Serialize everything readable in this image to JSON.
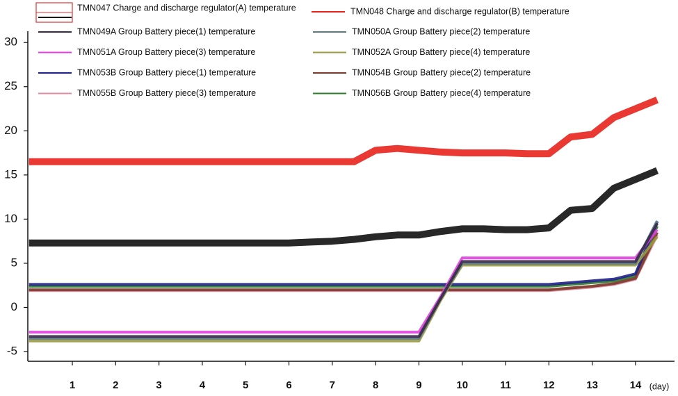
{
  "chart_data": {
    "type": "line",
    "xlabel": "(day)",
    "x": [
      0,
      0.5,
      1,
      1.5,
      2,
      2.5,
      3,
      3.5,
      4,
      4.5,
      5,
      5.5,
      6,
      6.5,
      7,
      7.5,
      8,
      8.5,
      9,
      9.5,
      10,
      10.5,
      11,
      11.5,
      12,
      12.5,
      13,
      13.5,
      14,
      14.5
    ],
    "xlim": [
      0,
      14.9
    ],
    "xticks": [
      1,
      2,
      3,
      4,
      5,
      6,
      7,
      8,
      9,
      10,
      11,
      12,
      13,
      14
    ],
    "ylim": [
      -6.1,
      31
    ],
    "yticks": [
      -5,
      0,
      5,
      10,
      15,
      20,
      25,
      30
    ],
    "series": [
      {
        "name": "TMN047 Charge and discharge regulator(A) temperature",
        "color": "#111111",
        "values": [
          7.3,
          7.3,
          7.3,
          7.3,
          7.3,
          7.3,
          7.3,
          7.3,
          7.3,
          7.3,
          7.3,
          7.3,
          7.3,
          7.4,
          7.5,
          7.7,
          8,
          8.2,
          8.2,
          8.6,
          8.9,
          8.9,
          8.8,
          8.8,
          9,
          11,
          11.2,
          13.5,
          14.5,
          15.5
        ]
      },
      {
        "name": "TMN048 Charge and discharge regulator(B) temperature",
        "color": "#e8221c",
        "values": [
          16.5,
          16.5,
          16.5,
          16.5,
          16.5,
          16.5,
          16.5,
          16.5,
          16.5,
          16.5,
          16.5,
          16.5,
          16.5,
          16.5,
          16.5,
          16.5,
          17.8,
          18,
          17.8,
          17.6,
          17.5,
          17.5,
          17.5,
          17.4,
          17.4,
          19.3,
          19.6,
          21.5,
          22.5,
          23.5
        ]
      },
      {
        "name": "TMN049A Group Battery piece(1) temperature",
        "color": "#3a2a4a",
        "values": [
          -3.3,
          -3.3,
          -3.3,
          -3.3,
          -3.3,
          -3.3,
          -3.3,
          -3.3,
          -3.3,
          -3.3,
          -3.3,
          -3.3,
          -3.3,
          -3.3,
          -3.3,
          -3.3,
          -3.3,
          -3.3,
          -3.3,
          1,
          5.2,
          5.2,
          5.2,
          5.2,
          5.2,
          5.2,
          5.2,
          5.2,
          5.2,
          9.5
        ]
      },
      {
        "name": "TMN050A Group Battery piece(2) temperature",
        "color": "#5a7a8a",
        "values": [
          -3.5,
          -3.5,
          -3.5,
          -3.5,
          -3.5,
          -3.5,
          -3.5,
          -3.5,
          -3.5,
          -3.5,
          -3.5,
          -3.5,
          -3.5,
          -3.5,
          -3.5,
          -3.5,
          -3.5,
          -3.5,
          -3.5,
          1,
          5.0,
          5.0,
          5.0,
          5.0,
          5.0,
          5.0,
          5.0,
          5.0,
          5.0,
          9.8
        ]
      },
      {
        "name": "TMN051A Group Battery piece(3) temperature",
        "color": "#e040e0",
        "values": [
          -2.8,
          -2.8,
          -2.8,
          -2.8,
          -2.8,
          -2.8,
          -2.8,
          -2.8,
          -2.8,
          -2.8,
          -2.8,
          -2.8,
          -2.8,
          -2.8,
          -2.8,
          -2.8,
          -2.8,
          -2.8,
          -2.8,
          1.2,
          5.6,
          5.6,
          5.6,
          5.6,
          5.6,
          5.6,
          5.6,
          5.6,
          5.6,
          8.8
        ]
      },
      {
        "name": "TMN052A Group Battery piece(4) temperature",
        "color": "#9a9a40",
        "values": [
          -3.8,
          -3.8,
          -3.8,
          -3.8,
          -3.8,
          -3.8,
          -3.8,
          -3.8,
          -3.8,
          -3.8,
          -3.8,
          -3.8,
          -3.8,
          -3.8,
          -3.8,
          -3.8,
          -3.8,
          -3.8,
          -3.8,
          0.8,
          4.8,
          4.8,
          4.8,
          4.8,
          4.8,
          4.8,
          4.8,
          4.8,
          4.8,
          8
        ]
      },
      {
        "name": "TMN053B Group Battery piece(1) temperature",
        "color": "#20208a",
        "values": [
          2.6,
          2.6,
          2.6,
          2.6,
          2.6,
          2.6,
          2.6,
          2.6,
          2.6,
          2.6,
          2.6,
          2.6,
          2.6,
          2.6,
          2.6,
          2.6,
          2.6,
          2.6,
          2.6,
          2.6,
          2.6,
          2.6,
          2.6,
          2.6,
          2.6,
          2.8,
          3,
          3.2,
          3.8,
          9.7
        ]
      },
      {
        "name": "TMN054B Group Battery piece(2) temperature",
        "color": "#7a3a2a",
        "values": [
          2.0,
          2.0,
          2.0,
          2.0,
          2.0,
          2.0,
          2.0,
          2.0,
          2.0,
          2.0,
          2.0,
          2.0,
          2.0,
          2.0,
          2.0,
          2.0,
          2.0,
          2.0,
          2.0,
          2.0,
          2.0,
          2.0,
          2.0,
          2.0,
          2.0,
          2.2,
          2.4,
          2.7,
          3.3,
          8.5
        ]
      },
      {
        "name": "TMN055B Group Battery piece(3) temperature",
        "color": "#e08aa0",
        "values": [
          1.9,
          1.9,
          1.9,
          1.9,
          1.9,
          1.9,
          1.9,
          1.9,
          1.9,
          1.9,
          1.9,
          1.9,
          1.9,
          1.9,
          1.9,
          1.9,
          1.9,
          1.9,
          1.9,
          1.9,
          1.9,
          1.9,
          1.9,
          1.9,
          1.9,
          2.1,
          2.3,
          2.6,
          3.2,
          8.2
        ]
      },
      {
        "name": "TMN056B Group Battery piece(4) temperature",
        "color": "#2a7a2a",
        "values": [
          2.4,
          2.4,
          2.4,
          2.4,
          2.4,
          2.4,
          2.4,
          2.4,
          2.4,
          2.4,
          2.4,
          2.4,
          2.4,
          2.4,
          2.4,
          2.4,
          2.4,
          2.4,
          2.4,
          2.4,
          2.4,
          2.4,
          2.4,
          2.4,
          2.4,
          2.6,
          2.8,
          3.0,
          3.6,
          9.2
        ]
      }
    ]
  }
}
